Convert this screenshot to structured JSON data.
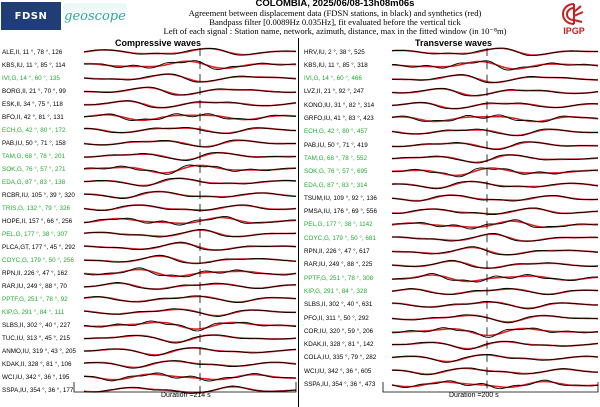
{
  "header": {
    "logo_fdsn": "FDSN",
    "logo_geoscope": "geoscope",
    "logo_ipgp": "IPGP",
    "title": "COLOMBIA, 2025/06/08-13h08m06s",
    "subtitle1": "Agreement between displacement data (FDSN stations, in black) and synthetics (red)",
    "subtitle2": "Bandpass filter [0.0089Hz 0.035Hz], fit evaluated before the vertical tick",
    "subtitle3": "Left of each signal : Station name, network, azimuth, distance, max in the fitted window (in 10⁻⁸m)"
  },
  "colors": {
    "data": "#000000",
    "synthetic": "#e02020",
    "good_fit": "#22a832",
    "normal": "#000000"
  },
  "panels": {
    "left": {
      "title": "Compressive waves",
      "duration": "Duration =214 s",
      "stations": [
        {
          "label": "ALE,II, 11 °, 78 °, 126",
          "color": "black"
        },
        {
          "label": "KBS,IU, 11 °, 85 °, 114",
          "color": "black"
        },
        {
          "label": "IVI,G, 14 °, 60 °, 135",
          "color": "green"
        },
        {
          "label": "BORG,II, 21 °, 70 °, 99",
          "color": "black"
        },
        {
          "label": "ESK,II, 34 °, 75 °, 118",
          "color": "black"
        },
        {
          "label": "BFO,II, 42 °, 81 °, 131",
          "color": "black"
        },
        {
          "label": "ECH,G, 42 °, 80 °, 172",
          "color": "green"
        },
        {
          "label": "PAB,IU, 50 °, 71 °, 158",
          "color": "black"
        },
        {
          "label": "TAM,G, 68 °, 78 °, 201",
          "color": "green"
        },
        {
          "label": "SOK,G, 76 °, 57 °, 271",
          "color": "green"
        },
        {
          "label": "EDA,G, 87 °, 83 °, 138",
          "color": "green"
        },
        {
          "label": "RCBR,IU, 105 °, 39 °, 320",
          "color": "black"
        },
        {
          "label": "TRIS,G, 132 °, 79 °, 326",
          "color": "green"
        },
        {
          "label": "HOPE,II, 157 °, 66 °, 256",
          "color": "black"
        },
        {
          "label": "PEL,G, 177 °, 38 °, 307",
          "color": "green"
        },
        {
          "label": "PLCA,GT, 177 °, 45 °, 292",
          "color": "black"
        },
        {
          "label": "COYC,G, 179 °, 50 °, 256",
          "color": "green"
        },
        {
          "label": "RPN,II, 226 °, 47 °, 162",
          "color": "black"
        },
        {
          "label": "RAR,IU, 249 °, 88 °, 70",
          "color": "black"
        },
        {
          "label": "PPTF,G, 251 °, 78 °, 92",
          "color": "green"
        },
        {
          "label": "KIP,G, 291 °, 84 °, 111",
          "color": "green"
        },
        {
          "label": "SLBS,II, 302 °, 40 °, 227",
          "color": "black"
        },
        {
          "label": "TUC,IU, 313 °, 45 °, 215",
          "color": "black"
        },
        {
          "label": "ANMO,IU, 319 °, 43 °, 205",
          "color": "black"
        },
        {
          "label": "KDAK,II, 328 °, 81 °, 106",
          "color": "black"
        },
        {
          "label": "WCI,IU, 342 °, 36 °, 195",
          "color": "black"
        },
        {
          "label": "SSPA,IU, 354 °, 36 °, 177",
          "color": "black"
        }
      ]
    },
    "right": {
      "title": "Transverse waves",
      "duration": "Duration =200 s",
      "stations": [
        {
          "label": "HRV,IU, 2 °, 38 °, 525",
          "color": "black"
        },
        {
          "label": "KBS,IU, 11 °, 85 °, 318",
          "color": "black"
        },
        {
          "label": "IVI,G, 14 °, 60 °, 466",
          "color": "green"
        },
        {
          "label": "LVZ,II, 21 °, 92 °, 247",
          "color": "black"
        },
        {
          "label": "KONO,IU, 31 °, 82 °, 314",
          "color": "black"
        },
        {
          "label": "GRFO,IU, 41 °, 83 °, 423",
          "color": "black"
        },
        {
          "label": "ECH,G, 42 °, 80 °, 457",
          "color": "green"
        },
        {
          "label": "PAB,IU, 50 °, 71 °, 419",
          "color": "black"
        },
        {
          "label": "TAM,G, 68 °, 78 °, 552",
          "color": "green"
        },
        {
          "label": "SOK,G, 76 °, 57 °, 695",
          "color": "green"
        },
        {
          "label": "EDA,G, 87 °, 83 °, 314",
          "color": "green"
        },
        {
          "label": "TSUM,IU, 109 °, 92 °, 136",
          "color": "black"
        },
        {
          "label": "PMSA,IU, 176 °, 69 °, 556",
          "color": "black"
        },
        {
          "label": "PEL,G, 177 °, 38 °, 1142",
          "color": "green"
        },
        {
          "label": "COYC,G, 179 °, 50 °, 681",
          "color": "green"
        },
        {
          "label": "RPN,II, 226 °, 47 °, 617",
          "color": "black"
        },
        {
          "label": "RAR,IU, 249 °, 88 °, 225",
          "color": "black"
        },
        {
          "label": "PPTF,G, 251 °, 78 °, 308",
          "color": "green"
        },
        {
          "label": "KIP,G, 291 °, 84 °, 328",
          "color": "green"
        },
        {
          "label": "SLBS,II, 302 °, 40 °, 631",
          "color": "black"
        },
        {
          "label": "PFO,II, 311 °, 50 °, 292",
          "color": "black"
        },
        {
          "label": "COR,IU, 320 °, 59 °, 206",
          "color": "black"
        },
        {
          "label": "KDAK,II, 328 °, 81 °, 142",
          "color": "black"
        },
        {
          "label": "COLA,IU, 335 °, 79 °, 282",
          "color": "black"
        },
        {
          "label": "WCI,IU, 342 °, 36 °, 605",
          "color": "black"
        },
        {
          "label": "SSPA,IU, 354 °, 36 °, 473",
          "color": "black"
        }
      ]
    }
  }
}
